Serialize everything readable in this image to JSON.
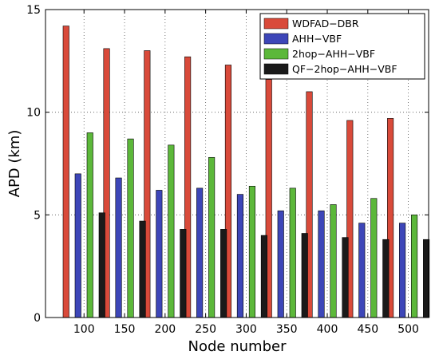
{
  "chart_data": {
    "type": "bar",
    "xlabel": "Node number",
    "ylabel": "APD (km)",
    "ylim": [
      0,
      15
    ],
    "yticks": [
      0,
      5,
      10,
      15
    ],
    "grid": true,
    "legend_placement": "top-right",
    "categories": [
      "100",
      "150",
      "200",
      "250",
      "300",
      "350",
      "400",
      "450",
      "500"
    ],
    "series": [
      {
        "name": "WDFAD−DBR",
        "color": "#d94a3a",
        "values": [
          14.2,
          13.1,
          13.0,
          12.7,
          12.3,
          11.6,
          11.0,
          9.6,
          9.7
        ]
      },
      {
        "name": "AHH−VBF",
        "color": "#3d46b8",
        "values": [
          7.0,
          6.8,
          6.2,
          6.3,
          6.0,
          5.2,
          5.2,
          4.6,
          4.6
        ]
      },
      {
        "name": "2hop−AHH−VBF",
        "color": "#5cb83a",
        "values": [
          9.0,
          8.7,
          8.4,
          7.8,
          6.4,
          6.3,
          5.5,
          5.8,
          5.0
        ]
      },
      {
        "name": "QF−2hop−AHH−VBF",
        "color": "#1a1a1a",
        "values": [
          5.1,
          4.7,
          4.3,
          4.3,
          4.0,
          4.1,
          3.9,
          3.8,
          3.8
        ]
      }
    ]
  }
}
